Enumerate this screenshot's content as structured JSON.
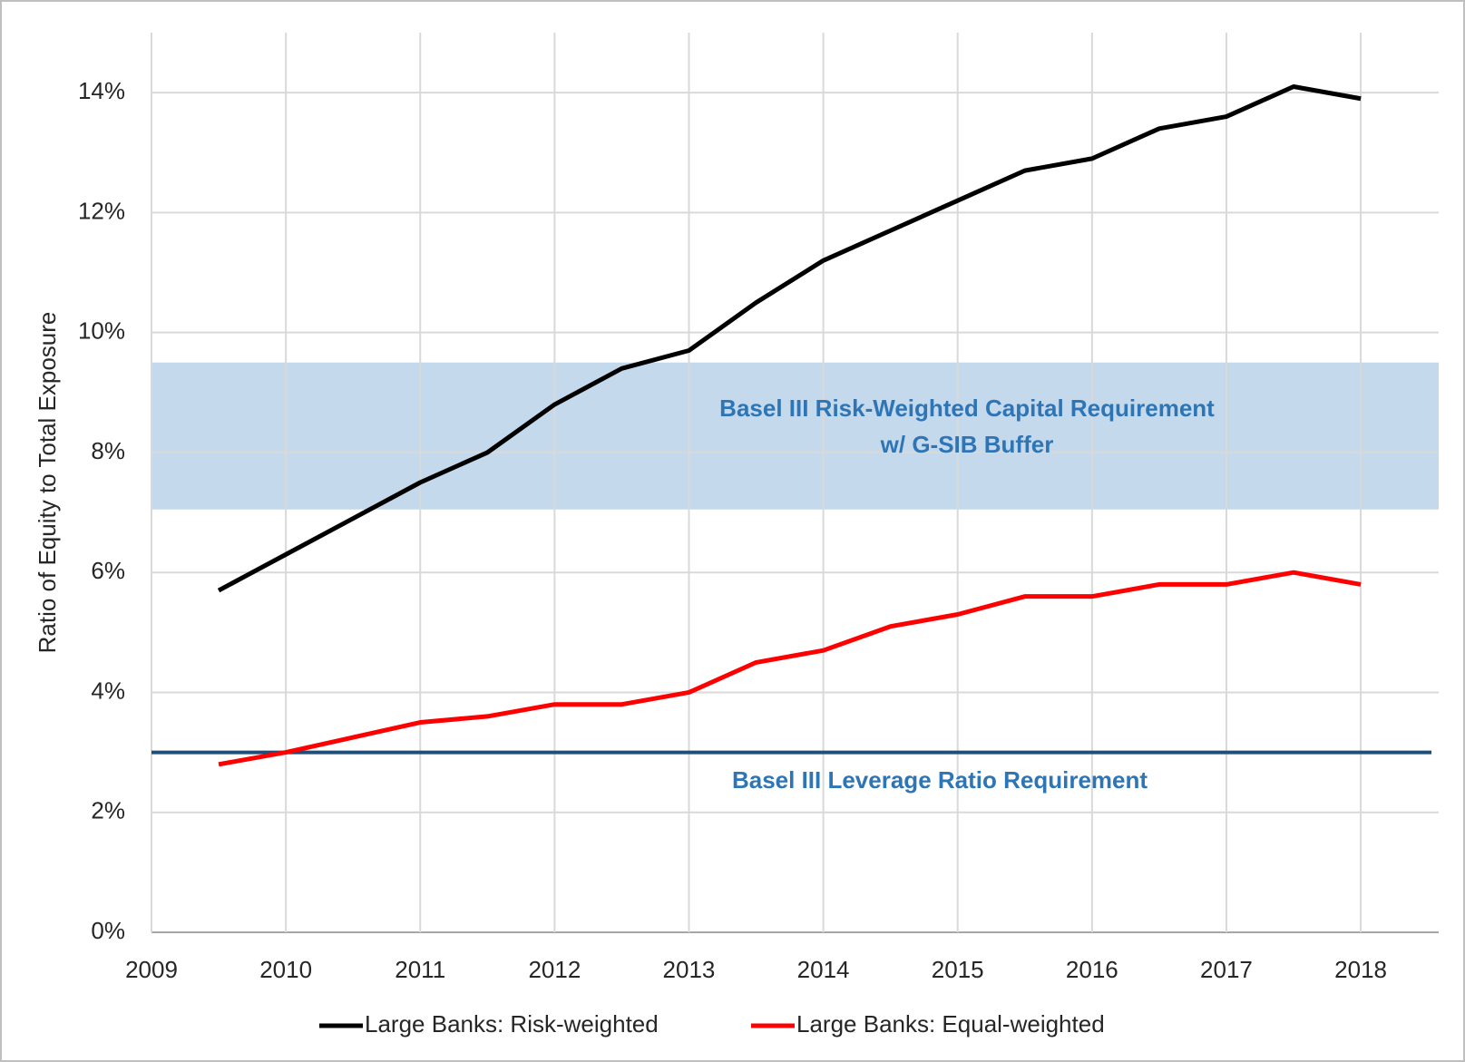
{
  "chart_data": {
    "type": "line",
    "y_label": "Ratio of Equity to Total Exposure",
    "x": [
      2009.5,
      2010,
      2010.5,
      2011,
      2011.5,
      2012,
      2012.5,
      2013,
      2013.5,
      2014,
      2014.5,
      2015,
      2015.5,
      2016,
      2016.5,
      2017,
      2017.5,
      2018
    ],
    "series": [
      {
        "name": "Large Banks: Risk-weighted",
        "color": "#000000",
        "values": [
          5.7,
          6.3,
          6.9,
          7.5,
          8.0,
          8.8,
          9.4,
          9.7,
          10.5,
          11.2,
          11.7,
          12.2,
          12.7,
          12.9,
          13.4,
          13.6,
          14.1,
          13.9
        ]
      },
      {
        "name": "Large Banks: Equal-weighted",
        "color": "#ff0000",
        "values": [
          2.8,
          3.0,
          3.25,
          3.5,
          3.6,
          3.8,
          3.8,
          4.0,
          4.5,
          4.7,
          5.1,
          5.3,
          5.6,
          5.6,
          5.8,
          5.8,
          6.0,
          5.8
        ]
      }
    ],
    "risk_band": {
      "range": [
        7.05,
        9.5
      ],
      "color": "#c5d9ed",
      "label": [
        "Basel III Risk-Weighted Capital Requirement",
        "w/ G-SIB Buffer"
      ]
    },
    "leverage_line": {
      "value": 3,
      "color": "#1f4e79",
      "label": "Basel III Leverage Ratio Requirement"
    },
    "xlim": [
      2009,
      2018.58
    ],
    "xticks": [
      2009,
      2010,
      2011,
      2012,
      2013,
      2014,
      2015,
      2016,
      2017,
      2018
    ],
    "ylim": [
      0,
      15
    ],
    "yticks": [
      {
        "value": 0,
        "label": "0%"
      },
      {
        "value": 2,
        "label": "2%"
      },
      {
        "value": 4,
        "label": "4%"
      },
      {
        "value": 6,
        "label": "6%"
      },
      {
        "value": 8,
        "label": "8%"
      },
      {
        "value": 10,
        "label": "10%"
      },
      {
        "value": 12,
        "label": "12%"
      },
      {
        "value": 14,
        "label": "14%"
      }
    ],
    "grid": true
  }
}
